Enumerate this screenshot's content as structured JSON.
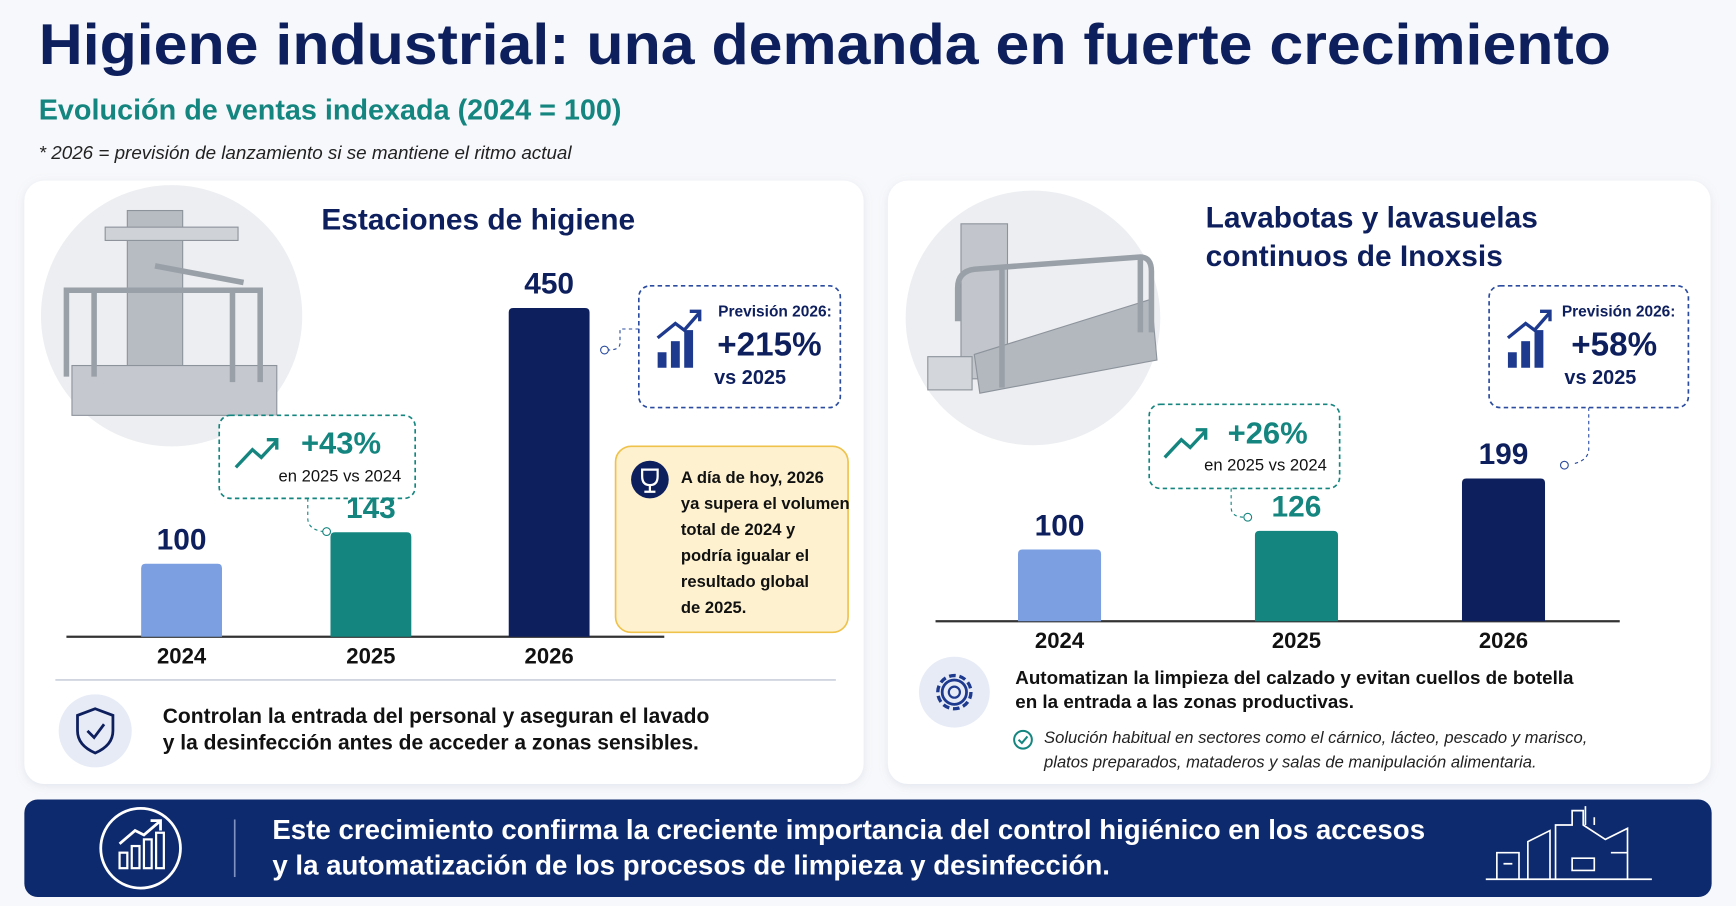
{
  "title": "Higiene industrial: una demanda en fuerte crecimiento",
  "subtitle": "Evolución de ventas indexada (2024 = 100)",
  "note": "* 2026 = previsión de lanzamiento si se mantiene el ritmo actual",
  "chart_data": [
    {
      "type": "bar",
      "title": [
        "Estaciones de higiene"
      ],
      "categories": [
        "2024",
        "2025",
        "2026"
      ],
      "values": [
        100,
        143,
        450
      ],
      "colors": [
        "#7b9fe0",
        "#14857f",
        "#0e1f5e"
      ],
      "label_colors": [
        "#0e1f5e",
        "#14857f",
        "#0e1f5e"
      ],
      "growth": {
        "value": "+43%",
        "label": "en 2025 vs 2024"
      },
      "forecast": {
        "heading": "Previsión 2026:",
        "value": "+215%",
        "label": "vs 2025"
      },
      "highlight": [
        "A día de hoy, 2026",
        "ya supera el volumen",
        "total de 2024 y",
        "podría igualar el",
        "resultado global",
        "de 2025."
      ],
      "footer": [
        "Controlan la entrada del personal y aseguran el lavado",
        "y la desinfección antes de acceder a zonas sensibles."
      ]
    },
    {
      "type": "bar",
      "title": [
        "Lavabotas y lavasuelas",
        "continuos de Inoxsis"
      ],
      "categories": [
        "2024",
        "2025",
        "2026"
      ],
      "values": [
        100,
        126,
        199
      ],
      "colors": [
        "#7b9fe0",
        "#14857f",
        "#0e1f5e"
      ],
      "label_colors": [
        "#0e1f5e",
        "#14857f",
        "#0e1f5e"
      ],
      "growth": {
        "value": "+26%",
        "label": "en 2025 vs 2024"
      },
      "forecast": {
        "heading": "Previsión 2026:",
        "value": "+58%",
        "label": "vs 2025"
      },
      "footer": [
        "Automatizan la limpieza del calzado y evitan cuellos de botella",
        "en la entrada a las zonas productivas."
      ],
      "footnote": [
        "Solución habitual en sectores como el cárnico, lácteo, pescado y marisco,",
        "platos preparados, mataderos y salas de manipulación alimentaria."
      ]
    }
  ],
  "banner": [
    "Este crecimiento confirma la creciente importancia del control higiénico en los accesos",
    "y la automatización de los procesos de limpieza y desinfección."
  ]
}
